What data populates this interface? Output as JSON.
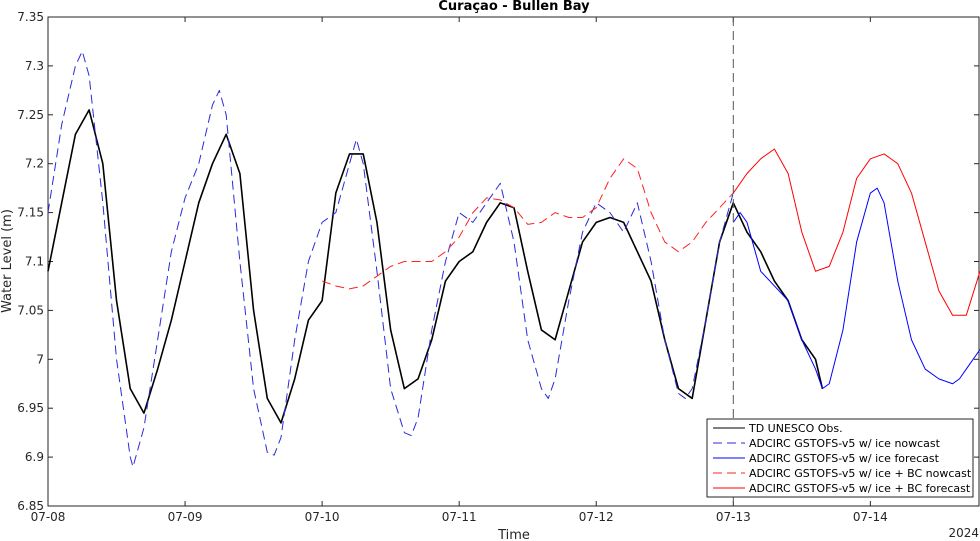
{
  "chart_data": {
    "type": "line",
    "title": "Curaçao - Bullen Bay",
    "xlabel": "Time",
    "ylabel": "Water Level (m)",
    "year_label": "2024",
    "x_tick_labels": [
      "07-08",
      "07-09",
      "07-10",
      "07-11",
      "07-12",
      "07-13",
      "07-14"
    ],
    "xlim_days": [
      0,
      6.8
    ],
    "ylim": [
      6.85,
      7.35
    ],
    "y_ticks": [
      6.85,
      6.9,
      6.95,
      7.0,
      7.05,
      7.1,
      7.15,
      7.2,
      7.25,
      7.3,
      7.35
    ],
    "y_tick_labels": [
      "6.85",
      "6.9",
      "6.95",
      "7",
      "7.05",
      "7.1",
      "7.15",
      "7.2",
      "7.25",
      "7.3",
      "7.35"
    ],
    "nowcast_forecast_divider_day": 5.0,
    "legend_position": "bottom-right",
    "grid": false,
    "series": [
      {
        "name": "TD UNESCO Obs.",
        "color": "#000000",
        "dash": "solid",
        "x": [
          0.0,
          0.1,
          0.2,
          0.3,
          0.4,
          0.5,
          0.6,
          0.7,
          0.8,
          0.9,
          1.0,
          1.1,
          1.2,
          1.3,
          1.4,
          1.5,
          1.6,
          1.7,
          1.8,
          1.9,
          2.0,
          2.1,
          2.2,
          2.3,
          2.4,
          2.5,
          2.6,
          2.7,
          2.8,
          2.9,
          3.0,
          3.1,
          3.2,
          3.3,
          3.4,
          3.5,
          3.6,
          3.7,
          3.8,
          3.9,
          4.0,
          4.1,
          4.2,
          4.3,
          4.4,
          4.5,
          4.6,
          4.7,
          4.8,
          4.9,
          5.0,
          5.1,
          5.2,
          5.3,
          5.4,
          5.5,
          5.6,
          5.65
        ],
        "y": [
          7.09,
          7.16,
          7.23,
          7.255,
          7.2,
          7.06,
          6.97,
          6.945,
          6.99,
          7.04,
          7.1,
          7.16,
          7.2,
          7.23,
          7.19,
          7.05,
          6.96,
          6.935,
          6.98,
          7.04,
          7.06,
          7.17,
          7.21,
          7.21,
          7.14,
          7.03,
          6.97,
          6.98,
          7.02,
          7.08,
          7.1,
          7.11,
          7.14,
          7.16,
          7.155,
          7.09,
          7.03,
          7.02,
          7.07,
          7.12,
          7.14,
          7.145,
          7.14,
          7.11,
          7.08,
          7.02,
          6.97,
          6.96,
          7.04,
          7.12,
          7.16,
          7.13,
          7.11,
          7.08,
          7.06,
          7.02,
          7.0,
          6.97
        ]
      },
      {
        "name": "ADCIRC GSTOFS-v5 w/ ice nowcast",
        "color": "#2b2bd9",
        "dash": "dashed",
        "x": [
          0.0,
          0.1,
          0.2,
          0.25,
          0.3,
          0.4,
          0.5,
          0.6,
          0.62,
          0.7,
          0.8,
          0.9,
          1.0,
          1.1,
          1.2,
          1.25,
          1.3,
          1.4,
          1.5,
          1.6,
          1.65,
          1.7,
          1.8,
          1.9,
          2.0,
          2.1,
          2.2,
          2.25,
          2.3,
          2.4,
          2.5,
          2.6,
          2.65,
          2.7,
          2.8,
          2.9,
          3.0,
          3.1,
          3.2,
          3.3,
          3.4,
          3.5,
          3.6,
          3.65,
          3.7,
          3.8,
          3.9,
          4.0,
          4.1,
          4.2,
          4.3,
          4.4,
          4.5,
          4.6,
          4.65,
          4.7,
          4.8,
          4.9,
          5.0
        ],
        "y": [
          7.15,
          7.24,
          7.3,
          7.315,
          7.29,
          7.16,
          7.0,
          6.9,
          6.89,
          6.93,
          7.02,
          7.11,
          7.165,
          7.2,
          7.26,
          7.275,
          7.25,
          7.1,
          6.97,
          6.905,
          6.902,
          6.92,
          7.02,
          7.1,
          7.14,
          7.15,
          7.2,
          7.225,
          7.2,
          7.09,
          6.97,
          6.925,
          6.922,
          6.94,
          7.03,
          7.1,
          7.15,
          7.14,
          7.16,
          7.18,
          7.12,
          7.02,
          6.97,
          6.96,
          6.98,
          7.06,
          7.13,
          7.16,
          7.15,
          7.13,
          7.16,
          7.1,
          7.02,
          6.965,
          6.96,
          6.97,
          7.04,
          7.12,
          7.17
        ]
      },
      {
        "name": "ADCIRC GSTOFS-v5 w/ ice forecast",
        "color": "#0000ff",
        "dash": "solid",
        "x": [
          5.0,
          5.05,
          5.1,
          5.2,
          5.3,
          5.4,
          5.5,
          5.6,
          5.65,
          5.7,
          5.8,
          5.9,
          6.0,
          6.05,
          6.1,
          6.2,
          6.3,
          6.4,
          6.5,
          6.6,
          6.65,
          6.7,
          6.8
        ],
        "y": [
          7.14,
          7.15,
          7.14,
          7.09,
          7.075,
          7.06,
          7.02,
          6.99,
          6.97,
          6.975,
          7.03,
          7.12,
          7.17,
          7.175,
          7.16,
          7.08,
          7.02,
          6.99,
          6.98,
          6.975,
          6.98,
          6.99,
          7.01
        ]
      },
      {
        "name": "ADCIRC GSTOFS-v5 w/ ice + BC nowcast",
        "color": "#ff2020",
        "dash": "dashed",
        "x": [
          2.0,
          2.1,
          2.2,
          2.3,
          2.4,
          2.5,
          2.6,
          2.7,
          2.8,
          2.9,
          3.0,
          3.1,
          3.2,
          3.3,
          3.4,
          3.5,
          3.6,
          3.7,
          3.8,
          3.9,
          4.0,
          4.1,
          4.2,
          4.3,
          4.4,
          4.5,
          4.6,
          4.7,
          4.8,
          4.9,
          5.0
        ],
        "y": [
          7.08,
          7.075,
          7.072,
          7.075,
          7.085,
          7.095,
          7.1,
          7.1,
          7.1,
          7.11,
          7.125,
          7.15,
          7.165,
          7.163,
          7.155,
          7.138,
          7.14,
          7.15,
          7.145,
          7.145,
          7.155,
          7.185,
          7.205,
          7.195,
          7.15,
          7.12,
          7.11,
          7.12,
          7.14,
          7.155,
          7.17
        ]
      },
      {
        "name": "ADCIRC GSTOFS-v5 w/ ice + BC forecast",
        "color": "#ff0000",
        "dash": "solid",
        "x": [
          5.0,
          5.1,
          5.2,
          5.3,
          5.4,
          5.5,
          5.6,
          5.7,
          5.8,
          5.9,
          6.0,
          6.1,
          6.2,
          6.3,
          6.4,
          6.5,
          6.6,
          6.7,
          6.8
        ],
        "y": [
          7.17,
          7.19,
          7.205,
          7.215,
          7.19,
          7.13,
          7.09,
          7.095,
          7.13,
          7.185,
          7.205,
          7.21,
          7.2,
          7.17,
          7.12,
          7.07,
          7.045,
          7.045,
          7.09
        ]
      }
    ]
  }
}
